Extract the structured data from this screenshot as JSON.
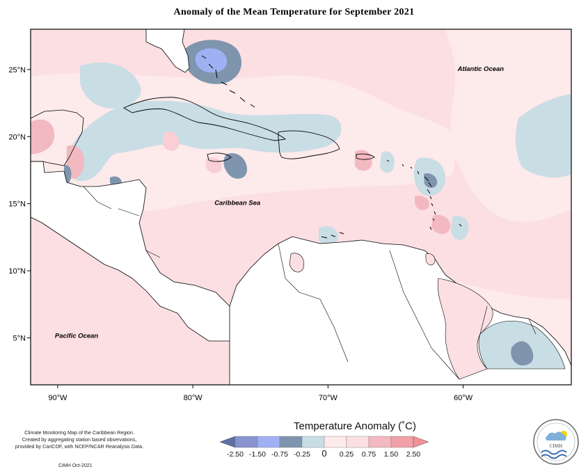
{
  "title": "Anomaly of the Mean Temperature for September 2021",
  "map": {
    "lon_range": [
      -92,
      -52
    ],
    "lat_range": [
      1.5,
      28
    ],
    "x_ticks": [
      {
        "lon": -90,
        "label": "90°W"
      },
      {
        "lon": -80,
        "label": "80°W"
      },
      {
        "lon": -70,
        "label": "70°W"
      },
      {
        "lon": -60,
        "label": "60°W"
      }
    ],
    "y_ticks": [
      {
        "lat": 25,
        "label": "25°N"
      },
      {
        "lat": 20,
        "label": "20°N"
      },
      {
        "lat": 15,
        "label": "15°N"
      },
      {
        "lat": 10,
        "label": "10°N"
      },
      {
        "lat": 5,
        "label": "5°N"
      }
    ],
    "labels": [
      {
        "text": "Atlantic Ocean",
        "lon": -58.7,
        "lat": 24.9
      },
      {
        "text": "Caribbean Sea",
        "lon": -76.7,
        "lat": 14.9
      },
      {
        "text": "Pacific Ocean",
        "lon": -88.6,
        "lat": 5.0
      }
    ]
  },
  "legend": {
    "title": "Temperature Anomaly (˚C)",
    "colors": [
      "#5f6fa5",
      "#8893cf",
      "#9fb1f3",
      "#7f95ae",
      "#c9dde5",
      "#fdeaea",
      "#fcdfe2",
      "#f3b9c0",
      "#f1a0a7",
      "#f3919b"
    ],
    "labels": [
      "-2.50",
      "-1.50",
      "-0.75",
      "-0.25",
      "0",
      "0.25",
      "0.75",
      "1.50",
      "2.50"
    ]
  },
  "credits": {
    "line1": "Climate Monitoring Map of the Caribbean Region.",
    "line2": "Created by aggregating station based observations,",
    "line3": "provided by CariCOF, with NCEP/NCAR Reanalysis Data.",
    "footer": "CIMH Oct-2021"
  },
  "logo": {
    "text": "CIMH"
  }
}
